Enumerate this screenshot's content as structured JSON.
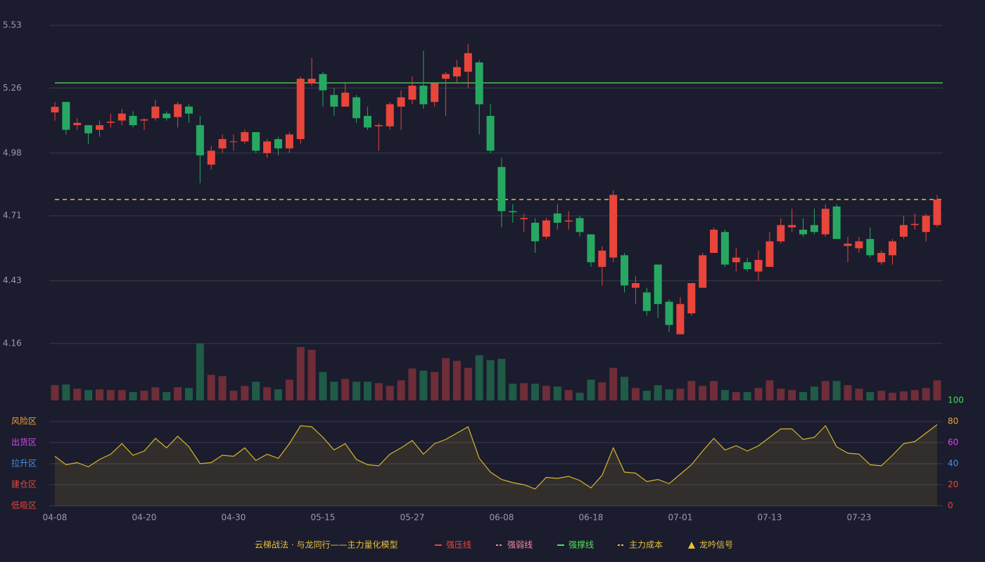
{
  "chart_data": {
    "type": "candlestick",
    "categories": [
      "04-08",
      null,
      null,
      null,
      null,
      null,
      null,
      null,
      "04-20",
      null,
      null,
      null,
      null,
      null,
      null,
      null,
      "04-30",
      null,
      null,
      null,
      null,
      null,
      null,
      null,
      "05-15",
      null,
      null,
      null,
      null,
      null,
      null,
      null,
      "05-27",
      null,
      null,
      null,
      null,
      null,
      null,
      null,
      "06-08",
      null,
      null,
      null,
      null,
      null,
      null,
      null,
      "06-18",
      null,
      null,
      null,
      null,
      null,
      null,
      null,
      "07-01",
      null,
      null,
      null,
      null,
      null,
      null,
      null,
      "07-13",
      null,
      null,
      null,
      null,
      null,
      null,
      null,
      "07-23",
      null,
      null,
      null,
      null,
      null,
      null,
      null
    ],
    "open": [
      5.155,
      5.2,
      5.1,
      5.1,
      5.08,
      5.11,
      5.12,
      5.14,
      5.12,
      5.13,
      5.15,
      5.135,
      5.18,
      5.1,
      4.93,
      5.0,
      5.03,
      5.03,
      5.07,
      4.98,
      5.04,
      5.0,
      5.04,
      5.28,
      5.32,
      5.23,
      5.18,
      5.22,
      5.14,
      5.095,
      5.095,
      5.18,
      5.21,
      5.27,
      5.2,
      5.3,
      5.31,
      5.33,
      5.37,
      5.14,
      4.92,
      4.73,
      4.695,
      4.68,
      4.62,
      4.72,
      4.685,
      4.7,
      4.63,
      4.49,
      4.53,
      4.54,
      4.4,
      4.38,
      4.5,
      4.34,
      4.2,
      4.29,
      4.4,
      4.55,
      4.64,
      4.51,
      4.51,
      4.47,
      4.49,
      4.6,
      4.66,
      4.65,
      4.67,
      4.63,
      4.75,
      4.58,
      4.57,
      4.61,
      4.51,
      4.54,
      4.62,
      4.67,
      4.64,
      4.67
    ],
    "high": [
      5.2,
      5.2,
      5.13,
      5.1,
      5.12,
      5.15,
      5.17,
      5.16,
      5.13,
      5.21,
      5.16,
      5.2,
      5.19,
      5.14,
      5.01,
      5.06,
      5.06,
      5.08,
      5.07,
      5.04,
      5.05,
      5.07,
      5.31,
      5.39,
      5.33,
      5.26,
      5.28,
      5.23,
      5.18,
      5.11,
      5.2,
      5.25,
      5.31,
      5.42,
      5.28,
      5.33,
      5.38,
      5.45,
      5.38,
      5.19,
      4.96,
      4.76,
      4.72,
      4.7,
      4.7,
      4.76,
      4.73,
      4.71,
      4.63,
      4.58,
      4.82,
      4.55,
      4.45,
      4.4,
      4.5,
      4.35,
      4.36,
      4.42,
      4.55,
      4.66,
      4.65,
      4.57,
      4.53,
      4.56,
      4.64,
      4.7,
      4.74,
      4.7,
      4.74,
      4.76,
      4.76,
      4.62,
      4.62,
      4.66,
      4.56,
      4.61,
      4.71,
      4.72,
      4.72,
      4.8
    ],
    "low": [
      5.12,
      5.06,
      5.08,
      5.02,
      5.05,
      5.09,
      5.1,
      5.09,
      5.08,
      5.12,
      5.12,
      5.09,
      5.11,
      4.85,
      4.91,
      4.98,
      4.99,
      5.02,
      4.98,
      4.96,
      4.97,
      4.98,
      5.02,
      5.27,
      5.18,
      5.14,
      5.18,
      5.11,
      5.08,
      4.99,
      5.08,
      5.08,
      5.19,
      5.17,
      5.18,
      5.14,
      5.28,
      5.26,
      5.06,
      4.98,
      4.66,
      4.68,
      4.64,
      4.55,
      4.61,
      4.65,
      4.65,
      4.62,
      4.49,
      4.41,
      4.51,
      4.38,
      4.33,
      4.28,
      4.27,
      4.21,
      4.2,
      4.28,
      4.4,
      4.55,
      4.49,
      4.47,
      4.47,
      4.43,
      4.49,
      4.59,
      4.64,
      4.62,
      4.63,
      4.62,
      4.61,
      4.51,
      4.55,
      4.53,
      4.5,
      4.5,
      4.61,
      4.65,
      4.6,
      4.66
    ],
    "close": [
      5.179,
      5.08,
      5.11,
      5.065,
      5.1,
      5.115,
      5.15,
      5.1,
      5.125,
      5.18,
      5.13,
      5.19,
      5.15,
      4.97,
      4.99,
      5.04,
      5.03,
      5.07,
      4.99,
      5.03,
      5.0,
      5.06,
      5.3,
      5.3,
      5.25,
      5.18,
      5.24,
      5.13,
      5.09,
      5.1,
      5.19,
      5.22,
      5.27,
      5.19,
      5.28,
      5.32,
      5.35,
      5.41,
      5.19,
      4.99,
      4.73,
      4.725,
      4.7,
      4.6,
      4.69,
      4.68,
      4.69,
      4.64,
      4.51,
      4.56,
      4.8,
      4.41,
      4.42,
      4.3,
      4.33,
      4.24,
      4.33,
      4.42,
      4.54,
      4.65,
      4.5,
      4.53,
      4.48,
      4.52,
      4.6,
      4.67,
      4.67,
      4.63,
      4.64,
      4.74,
      4.61,
      4.59,
      4.6,
      4.54,
      4.55,
      4.6,
      4.67,
      4.675,
      4.71,
      4.78
    ],
    "volume": [
      22,
      23,
      17,
      15,
      16,
      15,
      15,
      12,
      14,
      19,
      12,
      19,
      18,
      82,
      37,
      35,
      14,
      21,
      27,
      19,
      16,
      30,
      77,
      73,
      41,
      27,
      31,
      27,
      27,
      25,
      21,
      29,
      46,
      43,
      41,
      61,
      57,
      47,
      65,
      58,
      60,
      24,
      25,
      24,
      21,
      20,
      15,
      11,
      30,
      26,
      47,
      34,
      18,
      14,
      22,
      16,
      17,
      28,
      21,
      28,
      15,
      12,
      12,
      18,
      29,
      17,
      15,
      12,
      20,
      28,
      28,
      22,
      17,
      12,
      14,
      11,
      13,
      15,
      18,
      29
    ],
    "ylim": [
      4.16,
      5.53
    ],
    "yticks": [
      4.16,
      4.43,
      4.71,
      4.98,
      5.26,
      5.53
    ],
    "grid": true,
    "up_color": "#e9453b",
    "down_color": "#27a862",
    "up_volume_color": "#6e2d38",
    "down_volume_color": "#1f5b47",
    "support": {
      "name": "强撑线",
      "value": 5.282,
      "color": "#4fbf5a"
    },
    "cost": {
      "name": "主力成本",
      "value": 4.78,
      "color": "#e8c13a"
    },
    "indicator": {
      "values": [
        47,
        39,
        41,
        37,
        44,
        49,
        59,
        48,
        52,
        64,
        55,
        66,
        56,
        40,
        41,
        48,
        47,
        55,
        43,
        49,
        45,
        59,
        76,
        75,
        65,
        53,
        59,
        44,
        39,
        38,
        49,
        55,
        62,
        49,
        59,
        63,
        69,
        75,
        45,
        32,
        25,
        22,
        20,
        16,
        27,
        26,
        28,
        24,
        17,
        29,
        55,
        32,
        31,
        23,
        25,
        21,
        30,
        39,
        52,
        64,
        53,
        57,
        52,
        57,
        65,
        73,
        73,
        63,
        65,
        76,
        56,
        50,
        49,
        39,
        38,
        48,
        59,
        61,
        69,
        77
      ],
      "color": "#d8b62a",
      "ylim": [
        0,
        100
      ],
      "yticks": [
        0,
        20,
        40,
        60,
        80,
        100
      ],
      "tick_colors": [
        "#e8453c",
        "#e8453c",
        "#4a90e2",
        "#d946ef",
        "#f0a23a",
        "#3ddc5a"
      ],
      "zones": [
        {
          "name": "风险区",
          "value": 80,
          "color": "#f0a23a"
        },
        {
          "name": "出货区",
          "value": 60,
          "color": "#d946ef"
        },
        {
          "name": "拉升区",
          "value": 40,
          "color": "#4a90e2"
        },
        {
          "name": "建仓区",
          "value": 20,
          "color": "#e8453c"
        },
        {
          "name": "低吸区",
          "value": 0,
          "color": "#e8453c"
        }
      ]
    },
    "legend": {
      "title": "云梯战法 · 与龙同行——主力量化模型",
      "title_color": "#e8c13a",
      "items": [
        {
          "name": "强压线",
          "color": "#e9453b",
          "style": "solid"
        },
        {
          "name": "强弱线",
          "color": "#f08aa0",
          "style": "dashed"
        },
        {
          "name": "强撑线",
          "color": "#4fe05a",
          "style": "solid"
        },
        {
          "name": "主力成本",
          "color": "#e8c13a",
          "style": "dashed"
        },
        {
          "name": "龙吟信号",
          "color": "#e8c13a",
          "style": "triangle"
        }
      ]
    }
  }
}
